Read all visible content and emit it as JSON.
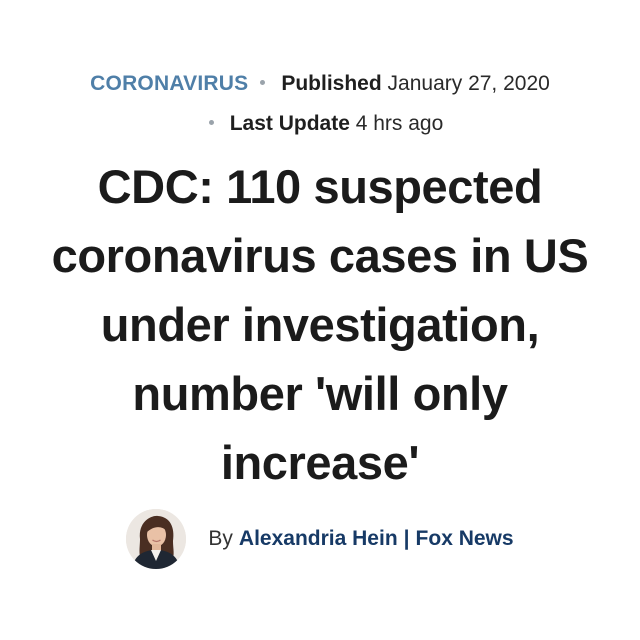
{
  "meta": {
    "category": "CORONAVIRUS",
    "published_label": "Published",
    "published_date": "January 27, 2020",
    "update_label": "Last Update",
    "update_value": "4 hrs ago"
  },
  "headline": {
    "lines": [
      "CDC: 110 suspected",
      "coronavirus cases in US",
      "under investigation,",
      "number 'will only",
      "increase'"
    ]
  },
  "byline": {
    "prefix": "By",
    "author": "Alexandria Hein",
    "separator": "|",
    "outlet": "Fox News",
    "avatar_icon": "author-avatar"
  }
}
